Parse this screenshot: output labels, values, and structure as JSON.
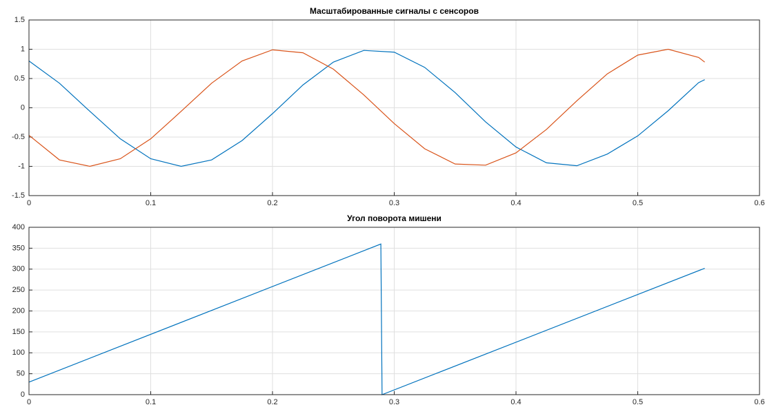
{
  "chart_data": [
    {
      "type": "line",
      "title": "Масштабированные сигналы с сенсоров",
      "x": [
        0,
        0.025,
        0.05,
        0.075,
        0.1,
        0.125,
        0.15,
        0.175,
        0.2,
        0.225,
        0.25,
        0.275,
        0.3,
        0.325,
        0.35,
        0.375,
        0.4,
        0.425,
        0.45,
        0.475,
        0.5,
        0.525,
        0.55,
        0.555
      ],
      "series": [
        {
          "color": "#0072bd",
          "values": [
            0.8,
            0.42,
            -0.06,
            -0.53,
            -0.87,
            -1.0,
            -0.89,
            -0.56,
            -0.1,
            0.39,
            0.78,
            0.98,
            0.95,
            0.69,
            0.26,
            -0.24,
            -0.67,
            -0.94,
            -0.99,
            -0.79,
            -0.48,
            -0.05,
            0.43,
            0.48
          ]
        },
        {
          "color": "#d95319",
          "values": [
            -0.47,
            -0.89,
            -1.0,
            -0.87,
            -0.53,
            -0.06,
            0.42,
            0.8,
            0.99,
            0.94,
            0.66,
            0.22,
            -0.27,
            -0.7,
            -0.96,
            -0.98,
            -0.77,
            -0.37,
            0.12,
            0.58,
            0.9,
            1.0,
            0.86,
            0.78
          ]
        }
      ],
      "xlim": [
        0,
        0.6
      ],
      "xticks": [
        0,
        0.1,
        0.2,
        0.3,
        0.4,
        0.5,
        0.6
      ],
      "ylim": [
        -1.5,
        1.5
      ],
      "yticks": [
        -1.5,
        -1,
        -0.5,
        0,
        0.5,
        1,
        1.5
      ],
      "grid": true
    },
    {
      "type": "line",
      "title": "Угол поворота мишени",
      "x": [
        0,
        0.289,
        0.29,
        0.555
      ],
      "series": [
        {
          "color": "#0072bd",
          "values": [
            30,
            360,
            0,
            302
          ]
        }
      ],
      "xlim": [
        0,
        0.6
      ],
      "xticks": [
        0,
        0.1,
        0.2,
        0.3,
        0.4,
        0.5,
        0.6
      ],
      "ylim": [
        0,
        400
      ],
      "yticks": [
        0,
        50,
        100,
        150,
        200,
        250,
        300,
        350,
        400
      ],
      "grid": true
    }
  ]
}
